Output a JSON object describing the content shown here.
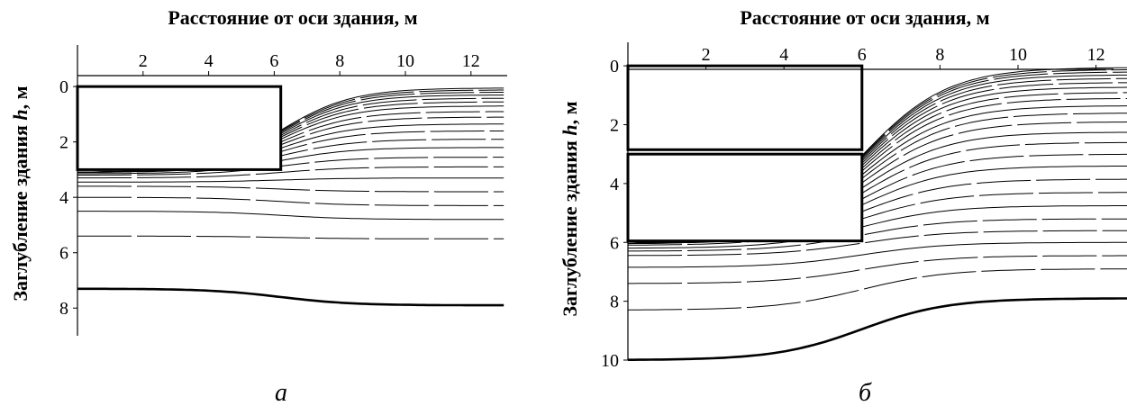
{
  "chart_data": [
    {
      "type": "contour",
      "title": "Расстояние от оси здания, м",
      "xlabel": "Расстояние от оси здания, м",
      "ylabel_prefix": "Заглубление здания ",
      "ylabel_var": "h",
      "ylabel_suffix": ", м",
      "caption": "а",
      "xlim": [
        0,
        13
      ],
      "ylim": [
        9,
        -1.5
      ],
      "xticks": [
        "2",
        "4",
        "6",
        "8",
        "10",
        "12"
      ],
      "yticks": [
        "0",
        "2",
        "4",
        "6",
        "8"
      ],
      "buildings": [
        {
          "x0": 0,
          "x1": 6.2,
          "y0": 0,
          "y1": 3
        }
      ],
      "contours": [
        {
          "level_far": 0.05,
          "level_near": 3.1,
          "weight": 1
        },
        {
          "level_far": 0.12,
          "level_near": 3.1,
          "weight": 1
        },
        {
          "level_far": 0.2,
          "level_near": 3.1,
          "weight": 1
        },
        {
          "level_far": 0.3,
          "level_near": 3.1,
          "weight": 1
        },
        {
          "level_far": 0.42,
          "level_near": 3.1,
          "weight": 1
        },
        {
          "level_far": 0.55,
          "level_near": 3.1,
          "weight": 1
        },
        {
          "level_far": 0.7,
          "level_near": 3.1,
          "weight": 1
        },
        {
          "level_far": 0.9,
          "level_near": 3.1,
          "weight": 1
        },
        {
          "level_far": 1.1,
          "level_near": 3.1,
          "weight": 1
        },
        {
          "level_far": 1.35,
          "level_near": 3.1,
          "weight": 1
        },
        {
          "level_far": 1.6,
          "level_near": 3.1,
          "weight": 1
        },
        {
          "level_far": 1.9,
          "level_near": 3.1,
          "weight": 1
        },
        {
          "level_far": 2.2,
          "level_near": 3.15,
          "weight": 1
        },
        {
          "level_far": 2.55,
          "level_near": 3.2,
          "weight": 1
        },
        {
          "level_far": 2.9,
          "level_near": 3.3,
          "weight": 1
        },
        {
          "level_far": 3.3,
          "level_near": 3.45,
          "weight": 1
        },
        {
          "level_far": 3.8,
          "level_near": 3.6,
          "weight": 1
        },
        {
          "level_far": 4.3,
          "level_near": 4.0,
          "weight": 1
        },
        {
          "level_far": 4.8,
          "level_near": 4.5,
          "weight": 1
        },
        {
          "level_far": 5.5,
          "level_near": 5.4,
          "weight": 1
        },
        {
          "level_far": 7.9,
          "level_near": 7.3,
          "weight": 2.6
        }
      ]
    },
    {
      "type": "contour",
      "title": "Расстояние от оси здания, м",
      "xlabel": "Расстояние от оси здания, м",
      "ylabel_prefix": "Заглубление здания ",
      "ylabel_var": "h",
      "ylabel_suffix": ", м",
      "caption": "б",
      "xlim": [
        0,
        13
      ],
      "ylim": [
        10,
        -0.8
      ],
      "xticks": [
        "2",
        "4",
        "6",
        "8",
        "10",
        "12"
      ],
      "yticks": [
        "0",
        "2",
        "4",
        "6",
        "8",
        "10"
      ],
      "buildings": [
        {
          "x0": 0,
          "x1": 6,
          "y0": 0,
          "y1": 2.85
        },
        {
          "x0": 0,
          "x1": 6,
          "y0": 3.0,
          "y1": 5.95
        }
      ],
      "contours": [
        {
          "level_far": 0.05,
          "level_near": 6.05,
          "weight": 1
        },
        {
          "level_far": 0.12,
          "level_near": 6.05,
          "weight": 1
        },
        {
          "level_far": 0.2,
          "level_near": 6.05,
          "weight": 1
        },
        {
          "level_far": 0.3,
          "level_near": 6.05,
          "weight": 1
        },
        {
          "level_far": 0.42,
          "level_near": 6.05,
          "weight": 1
        },
        {
          "level_far": 0.56,
          "level_near": 6.05,
          "weight": 1
        },
        {
          "level_far": 0.72,
          "level_near": 6.05,
          "weight": 1
        },
        {
          "level_far": 0.9,
          "level_near": 6.05,
          "weight": 1
        },
        {
          "level_far": 1.1,
          "level_near": 6.05,
          "weight": 1
        },
        {
          "level_far": 1.35,
          "level_near": 6.05,
          "weight": 1
        },
        {
          "level_far": 1.6,
          "level_near": 6.05,
          "weight": 1
        },
        {
          "level_far": 1.9,
          "level_near": 6.05,
          "weight": 1
        },
        {
          "level_far": 2.25,
          "level_near": 6.05,
          "weight": 1
        },
        {
          "level_far": 2.6,
          "level_near": 6.05,
          "weight": 1
        },
        {
          "level_far": 3.0,
          "level_near": 6.05,
          "weight": 1
        },
        {
          "level_far": 3.4,
          "level_near": 6.05,
          "weight": 1
        },
        {
          "level_far": 3.85,
          "level_near": 6.05,
          "weight": 1
        },
        {
          "level_far": 4.3,
          "level_near": 6.1,
          "weight": 1
        },
        {
          "level_far": 4.75,
          "level_near": 6.2,
          "weight": 1
        },
        {
          "level_far": 5.2,
          "level_near": 6.3,
          "weight": 1
        },
        {
          "level_far": 5.6,
          "level_near": 6.45,
          "weight": 1
        },
        {
          "level_far": 6.0,
          "level_near": 6.85,
          "weight": 1
        },
        {
          "level_far": 6.45,
          "level_near": 7.4,
          "weight": 1
        },
        {
          "level_far": 6.9,
          "level_near": 8.3,
          "weight": 1
        },
        {
          "level_far": 7.9,
          "level_near": 10.0,
          "weight": 2.6
        }
      ]
    }
  ]
}
